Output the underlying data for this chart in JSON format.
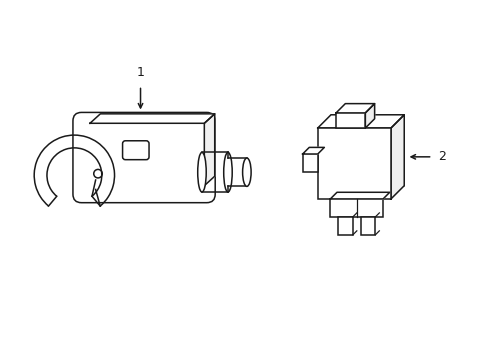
{
  "background_color": "#ffffff",
  "line_color": "#1a1a1a",
  "line_width": 1.1,
  "label1": "1",
  "label2": "2"
}
